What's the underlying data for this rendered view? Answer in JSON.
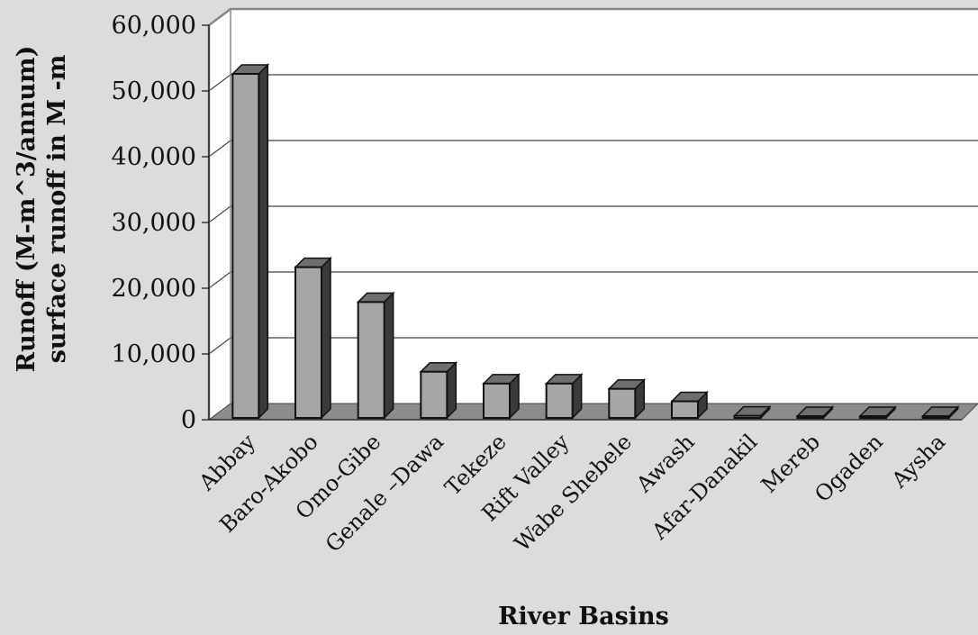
{
  "chart_data": {
    "type": "bar",
    "title": "",
    "xlabel": "River Basins",
    "ylabel_lines": [
      "Runoff (M-m^3/annum)",
      "surface runoff in M -m"
    ],
    "categories": [
      "Abbay",
      "Baro-Akobo",
      "Omo-Gibe",
      "Genale –Dawa",
      "Tekeze",
      "Rift Valley",
      "Wabe Shebele",
      "Awash",
      "Afar-Danakil",
      "Mereb",
      "Ogaden",
      "Aysha"
    ],
    "values": [
      52600,
      23200,
      17900,
      7300,
      5500,
      5500,
      4700,
      2800,
      600,
      200,
      0,
      0
    ],
    "ylim": [
      0,
      60000
    ],
    "yticks": [
      "0",
      "10,000",
      "20,000",
      "30,000",
      "40,000",
      "50,000",
      "60,000"
    ],
    "ytick_values": [
      0,
      10000,
      20000,
      30000,
      40000,
      50000,
      60000
    ],
    "grid": true,
    "legend": "none",
    "colors": {
      "background": "#dcdcdc",
      "plot_wall": "#ffffff",
      "floor": "#8c8c8c",
      "bar_front": "#a6a6a6",
      "bar_top": "#6e6e6e",
      "bar_side": "#3a3a3a",
      "outline": "#111111",
      "grid": "#444444"
    }
  }
}
